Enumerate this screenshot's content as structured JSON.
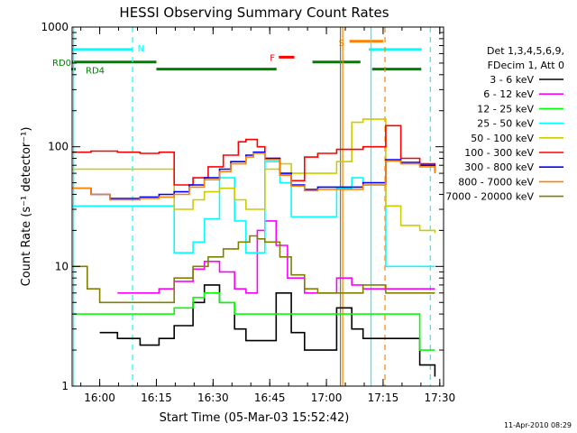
{
  "chart_data": {
    "type": "line",
    "title": "HESSI Observing Summary Count Rates",
    "xlabel": "Start Time (05-Mar-03 15:52:42)",
    "ylabel": "Count Rate (s⁻¹ detector⁻¹)",
    "yscale": "log",
    "ylim": [
      1,
      1000
    ],
    "xlim": [
      "15:52:42",
      "17:31:00"
    ],
    "x_unit": "minutes after 15:52:42",
    "x_ticks": [
      "16:00",
      "16:15",
      "16:30",
      "16:45",
      "17:00",
      "17:15",
      "17:30"
    ],
    "y_ticks": [
      "1",
      "10",
      "100",
      "1000"
    ],
    "grid": false,
    "legend_position": "right",
    "legend_header": [
      "Det 1,3,4,5,6,9,",
      "FDecim 1, Att 0"
    ],
    "footer_date": "11-Apr-2010 08:29",
    "series": [
      {
        "name": "3 - 6 keV",
        "color": "#000000",
        "x": [
          7.3,
          12,
          18,
          23,
          27,
          32,
          35,
          39,
          43,
          46,
          50,
          54,
          58,
          61.5,
          65,
          70,
          74,
          77,
          83,
          87,
          92,
          96
        ],
        "y": [
          2.8,
          2.5,
          2.2,
          2.5,
          3.2,
          5.0,
          7.0,
          5.0,
          3.0,
          2.4,
          2.4,
          6.0,
          2.8,
          2.0,
          2.0,
          4.5,
          3.0,
          2.5,
          2.5,
          2.5,
          1.5,
          1.2
        ]
      },
      {
        "name": "6 - 12 keV",
        "color": "#ff00ff",
        "x": [
          12,
          18,
          23,
          27,
          32,
          35,
          39,
          43,
          46,
          49,
          51,
          54,
          57,
          61.5,
          65,
          70,
          74,
          77,
          83,
          87,
          92,
          96
        ],
        "y": [
          6.0,
          6.0,
          6.5,
          7.5,
          9.5,
          11,
          9.0,
          6.5,
          6.0,
          20,
          24,
          15,
          8.0,
          6.0,
          6.0,
          8.0,
          7.0,
          6.5,
          6.5,
          6.5,
          6.5,
          6.5
        ]
      },
      {
        "name": "12 - 25 keV",
        "color": "#00ff00",
        "x": [
          0,
          5,
          12,
          18,
          23,
          27,
          32,
          35,
          39,
          43,
          46,
          50,
          54,
          58,
          61.5,
          65,
          70,
          74,
          77,
          83,
          88,
          92,
          96
        ],
        "y": [
          4.0,
          4.0,
          4.0,
          4.0,
          4.0,
          4.5,
          5.5,
          6.0,
          5.0,
          4.0,
          4.0,
          4.0,
          4.0,
          4.0,
          4.0,
          4.0,
          4.0,
          4.0,
          4.0,
          4.0,
          4.0,
          2.0,
          2.0
        ]
      },
      {
        "name": "25 - 50 keV",
        "color": "#00ffff",
        "x": [
          0,
          7.3,
          12,
          18,
          23,
          27,
          32,
          35,
          39,
          43,
          46,
          49,
          51,
          55,
          58,
          61.5,
          65,
          70,
          74,
          77,
          83,
          87,
          92,
          96
        ],
        "y": [
          32,
          32,
          32,
          32,
          32,
          13,
          16,
          25,
          55,
          24,
          13,
          13,
          75,
          50,
          26,
          26,
          26,
          45,
          55,
          48,
          10,
          10,
          10,
          10
        ]
      },
      {
        "name": "50 - 100 keV",
        "color": "#cccc00",
        "x": [
          0,
          7.3,
          12,
          18,
          23,
          27,
          32,
          35,
          39,
          43,
          46,
          49,
          51,
          55,
          58,
          61.5,
          65,
          70,
          74,
          77,
          83,
          87,
          92,
          96
        ],
        "y": [
          65,
          65,
          65,
          65,
          65,
          30,
          36,
          42,
          45,
          36,
          30,
          30,
          65,
          72,
          60,
          60,
          60,
          75,
          160,
          170,
          32,
          22,
          20,
          19
        ]
      },
      {
        "name": "100 - 300 keV",
        "color": "#ff0000",
        "x": [
          0,
          5,
          12,
          18,
          23,
          27,
          32,
          36,
          40,
          44,
          46,
          49,
          51,
          55,
          58,
          61.5,
          65,
          70,
          74,
          77,
          83,
          87,
          92,
          96
        ],
        "y": [
          90,
          92,
          90,
          88,
          90,
          48,
          55,
          68,
          85,
          110,
          115,
          100,
          80,
          58,
          52,
          82,
          88,
          95,
          95,
          100,
          150,
          80,
          72,
          70
        ]
      },
      {
        "name": "300 - 800 keV",
        "color": "#0000ff",
        "x": [
          0,
          5,
          10,
          14,
          18,
          23,
          27,
          31,
          35,
          39,
          42,
          46,
          48,
          51,
          55,
          58,
          61.5,
          65,
          70,
          74,
          77,
          83,
          87,
          92,
          96
        ],
        "y": [
          45,
          40,
          37,
          37,
          38,
          40,
          42,
          48,
          55,
          65,
          75,
          85,
          90,
          80,
          60,
          48,
          44,
          46,
          46,
          46,
          50,
          78,
          74,
          70,
          62
        ]
      },
      {
        "name": "800 - 7000 keV",
        "color": "#ff8000",
        "x": [
          0,
          5,
          10,
          14,
          18,
          23,
          27,
          31,
          35,
          39,
          42,
          46,
          48,
          51,
          55,
          58,
          61.5,
          65,
          70,
          74,
          77,
          83,
          87,
          92,
          96
        ],
        "y": [
          45,
          40,
          36,
          36,
          37,
          38,
          40,
          46,
          53,
          62,
          72,
          82,
          88,
          78,
          58,
          47,
          43,
          44,
          44,
          44,
          48,
          76,
          72,
          68,
          60
        ]
      },
      {
        "name": "7000 - 20000 keV",
        "color": "#808000",
        "x": [
          0,
          4,
          7.3,
          12,
          18,
          23,
          27,
          32,
          36,
          40,
          44,
          47,
          49,
          51,
          55,
          58,
          61.5,
          65,
          70,
          74,
          77,
          83,
          87,
          92,
          96
        ],
        "y": [
          10,
          6.5,
          5.0,
          5.0,
          5.0,
          5.0,
          8.0,
          10,
          12,
          14,
          16,
          18,
          17,
          16,
          12,
          8.5,
          6.5,
          6.0,
          6.0,
          6.0,
          7.0,
          6.0,
          6.0,
          6.0,
          6.0
        ]
      }
    ],
    "state_bars": [
      {
        "label": "N",
        "color": "#00ffff",
        "value_level": 650,
        "segments": [
          [
            0,
            15.9
          ],
          [
            78.5,
            92.5
          ]
        ]
      },
      {
        "label": "RD0",
        "color": "#008000",
        "value_level": 510,
        "segments": [
          [
            0,
            22.3
          ],
          [
            63.6,
            76.3
          ]
        ]
      },
      {
        "label": "RD4",
        "color": "#008000",
        "value_level": 445,
        "segments": [
          [
            22.3,
            54.1
          ],
          [
            79.4,
            92.4
          ]
        ]
      },
      {
        "label": "F",
        "color": "#ff0000",
        "value_level": 560,
        "segments": [
          [
            54.7,
            58.8
          ]
        ]
      },
      {
        "label": "S",
        "color": "#ff8000",
        "value_level": 760,
        "segments": [
          [
            73.4,
            82.3
          ]
        ]
      }
    ],
    "interval_lines": [
      {
        "color": "#00ffff",
        "style": "solid",
        "x": 0.4
      },
      {
        "color": "#00ffff",
        "style": "dashed",
        "x": 16.0
      },
      {
        "color": "#00ffff",
        "style": "solid",
        "x": 79.1
      },
      {
        "color": "#00ffff",
        "style": "dashed",
        "x": 94.8
      },
      {
        "color": "#ff8000",
        "style": "solid",
        "x": 71.6
      },
      {
        "color": "#ff8000",
        "style": "dashed",
        "x": 82.8
      },
      {
        "color": "#808000",
        "style": "solid",
        "x": 71.0
      }
    ]
  }
}
